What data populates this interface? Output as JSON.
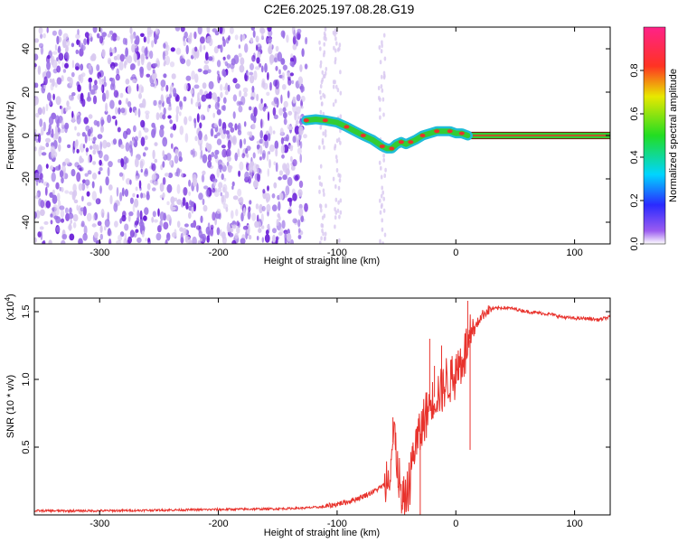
{
  "page": {
    "title": "C2E6.2025.197.08.28.G19"
  },
  "colors": {
    "line": "#e8322c",
    "scatter_light": "#d8c8f0",
    "scatter_mid": "#9a70e6",
    "scatter_dark": "#6a1fd8",
    "tube_outer": "#1fbdd8",
    "tube_inner": "#33cc33",
    "tube_core": "#e8322c",
    "flat_line": "#7a1010"
  },
  "chart_data": [
    {
      "type": "heatmap",
      "xlabel": "Height of straight line (km)",
      "ylabel": "Frequency (Hz)",
      "xlim": [
        -355,
        130
      ],
      "ylim": [
        -50,
        50
      ],
      "xticks": [
        -300,
        -200,
        -100,
        0,
        100
      ],
      "yticks": [
        -40,
        -20,
        0,
        20,
        40
      ],
      "colorbar": {
        "label": "Normalized spectral amplitude",
        "range": [
          0,
          1
        ],
        "ticks": [
          "0.0",
          "0.2",
          "0.4",
          "0.6",
          "0.8"
        ],
        "tick_values": [
          0,
          0.2,
          0.4,
          0.6,
          0.8
        ]
      },
      "doppler_trace": {
        "x": [
          -126,
          -118,
          -110,
          -100,
          -92,
          -85,
          -78,
          -70,
          -62,
          -58,
          -54,
          -50,
          -46,
          -42,
          -38,
          -34,
          -28,
          -22,
          -16,
          -10,
          -5,
          0,
          5,
          10
        ],
        "y": [
          7,
          7.5,
          7,
          6,
          4,
          2,
          0,
          -2,
          -5,
          -6,
          -6,
          -4,
          -3,
          -4,
          -3,
          -2,
          0,
          1,
          2,
          2,
          2,
          1,
          1,
          0
        ]
      },
      "flat_segment": {
        "x": [
          10,
          130
        ],
        "y": 0
      },
      "scatter_region": {
        "x": [
          -355,
          -126
        ],
        "y": [
          -50,
          50
        ]
      }
    },
    {
      "type": "line",
      "xlabel": "Height of straight line (km)",
      "ylabel": "SNR (10 * v/v)",
      "scale_label": "(x10",
      "scale_exponent": "4",
      "scale_suffix": ")",
      "xlim": [
        -355,
        130
      ],
      "ylim": [
        0,
        1.6
      ],
      "xticks": [
        -300,
        -200,
        -100,
        0,
        100
      ],
      "yticks": [
        0.5,
        1.0,
        1.5
      ],
      "ytick_labels": [
        "0.5",
        "1.0",
        "1.5"
      ],
      "series": [
        {
          "x": [
            -355,
            -300,
            -250,
            -200,
            -150,
            -130,
            -110,
            -100,
            -90,
            -80,
            -70,
            -60,
            -55,
            -52,
            -48,
            -45,
            -40,
            -35,
            -30,
            -25,
            -20,
            -15,
            -10,
            -5,
            0,
            5,
            10,
            15,
            20,
            25,
            30,
            40,
            50,
            60,
            70,
            80,
            90,
            100,
            110,
            120,
            130
          ],
          "y": [
            0.03,
            0.03,
            0.035,
            0.04,
            0.045,
            0.05,
            0.06,
            0.08,
            0.1,
            0.13,
            0.17,
            0.22,
            0.4,
            0.6,
            0.25,
            0.05,
            0.2,
            0.5,
            0.6,
            0.75,
            0.85,
            0.9,
            0.95,
            1.0,
            1.05,
            1.15,
            1.25,
            1.35,
            1.45,
            1.5,
            1.52,
            1.53,
            1.52,
            1.5,
            1.49,
            1.48,
            1.46,
            1.45,
            1.45,
            1.44,
            1.46
          ],
          "spikes": [
            {
              "x": -53,
              "y": 0.72
            },
            {
              "x": -51,
              "y": 0.55
            },
            {
              "x": -22,
              "y": 1.3
            },
            {
              "x": -18,
              "y": 1.1
            },
            {
              "x": -12,
              "y": 1.25
            },
            {
              "x": 10,
              "y": 1.58
            },
            {
              "x": 12,
              "y": 0.48
            },
            {
              "x": -30,
              "y": 0.0
            }
          ]
        }
      ]
    }
  ]
}
